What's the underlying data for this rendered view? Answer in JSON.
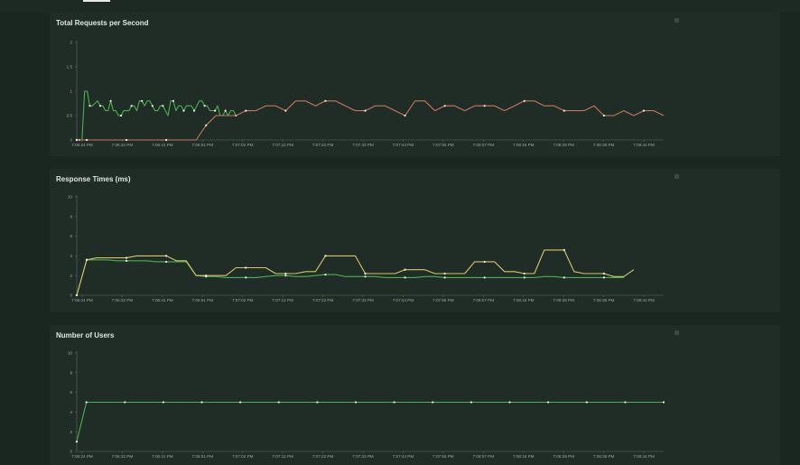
{
  "window": {
    "tab_indicator": ""
  },
  "chart_data": [
    {
      "type": "line",
      "title": "Total Requests per Second",
      "xlabel": "",
      "ylabel": "",
      "ylim": [
        0,
        2
      ],
      "yticks": [
        "0",
        "0.5",
        "1",
        "1.5",
        "2"
      ],
      "xticks": [
        "7:06:24 PM",
        "7:06:32 PM",
        "7:06:41 PM",
        "7:06:51 PM",
        "7:07:02 PM",
        "7:07:12 PM",
        "7:07:22 PM",
        "7:07:33 PM",
        "7:07:44 PM",
        "7:07:55 PM",
        "7:08:07 PM",
        "7:08:18 PM",
        "7:08:28 PM",
        "7:08:36 PM",
        "7:08:44 PM"
      ],
      "grid": false,
      "series": [
        {
          "color": "#4caf50",
          "values": [
            0,
            0,
            0,
            1,
            1,
            0.7,
            0.7,
            0.75,
            0.8,
            0.7,
            0.7,
            0.6,
            0.6,
            0.8,
            0.6,
            0.6,
            0.5,
            0.5,
            0.6,
            0.6,
            0.6,
            0.7,
            0.7,
            0.6,
            0.8,
            0.8,
            0.7,
            0.8,
            0.8,
            0.7,
            0.6,
            0.6,
            0.7,
            0.7,
            0.6,
            0.5,
            0.8,
            0.8,
            0.6,
            0.7,
            0.7,
            0.6,
            0.7,
            0.7,
            0.7,
            0.6,
            0.7,
            0.8,
            0.8,
            0.7,
            0.7,
            0.6,
            0.6,
            0.6,
            0.7,
            0.5,
            0.5,
            0.6,
            0.5,
            0.6,
            0.6,
            0.5
          ],
          "start": 0,
          "end": 16
        },
        {
          "color": "#c8765a",
          "values": [
            0,
            0,
            0,
            0,
            0,
            0,
            0,
            0,
            0,
            0,
            0,
            0,
            0,
            0.3,
            0.5,
            0.5,
            0.5,
            0.6,
            0.6,
            0.7,
            0.7,
            0.6,
            0.8,
            0.8,
            0.7,
            0.8,
            0.8,
            0.7,
            0.6,
            0.6,
            0.7,
            0.7,
            0.6,
            0.5,
            0.8,
            0.8,
            0.6,
            0.7,
            0.7,
            0.6,
            0.7,
            0.7,
            0.7,
            0.6,
            0.7,
            0.8,
            0.8,
            0.7,
            0.7,
            0.6,
            0.6,
            0.6,
            0.7,
            0.5,
            0.5,
            0.6,
            0.5,
            0.6,
            0.6,
            0.5
          ],
          "start": 0,
          "end": 59
        }
      ]
    },
    {
      "type": "line",
      "title": "Response Times (ms)",
      "xlabel": "",
      "ylabel": "",
      "ylim": [
        0,
        10
      ],
      "yticks": [
        "0",
        "2",
        "4",
        "6",
        "8",
        "10"
      ],
      "xticks": [
        "7:06:24 PM",
        "7:06:32 PM",
        "7:06:41 PM",
        "7:06:51 PM",
        "7:07:02 PM",
        "7:07:12 PM",
        "7:07:22 PM",
        "7:07:33 PM",
        "7:07:44 PM",
        "7:07:55 PM",
        "7:08:07 PM",
        "7:08:18 PM",
        "7:08:28 PM",
        "7:08:36 PM",
        "7:08:44 PM"
      ],
      "grid": false,
      "series": [
        {
          "color": "#4caf50",
          "values": [
            0,
            3.6,
            3.6,
            3.6,
            3.5,
            3.5,
            3.5,
            3.5,
            3.4,
            3.4,
            3.4,
            3.4,
            2,
            1.9,
            1.9,
            1.8,
            1.8,
            1.8,
            1.8,
            1.9,
            2,
            2,
            1.9,
            1.9,
            2,
            2.1,
            2.1,
            1.9,
            1.9,
            1.9,
            1.9,
            1.8,
            1.8,
            1.8,
            1.8,
            1.9,
            1.9,
            1.8,
            1.8,
            1.8,
            1.8,
            1.8,
            1.8,
            1.8,
            1.8,
            1.8,
            1.8,
            1.9,
            1.9,
            1.8,
            1.8,
            1.8,
            1.8,
            1.8,
            1.8,
            1.8
          ],
          "start": 0,
          "end": 55
        },
        {
          "color": "#d8c26a",
          "values": [
            0,
            3.6,
            3.8,
            3.8,
            3.8,
            3.8,
            4,
            4,
            4,
            4,
            3.5,
            3.5,
            2,
            2,
            2,
            2,
            2.8,
            2.8,
            2.8,
            2.8,
            2.2,
            2.2,
            2.2,
            2.4,
            2.4,
            4,
            4,
            4,
            4,
            2.2,
            2.2,
            2.2,
            2.2,
            2.6,
            2.6,
            2.6,
            2.2,
            2.2,
            2.2,
            2.2,
            3.4,
            3.4,
            3.4,
            2.4,
            2.4,
            2.2,
            2.2,
            4.6,
            4.6,
            4.6,
            2.4,
            2.2,
            2.2,
            2.2,
            1.9,
            1.9,
            2.6
          ],
          "start": 0,
          "end": 56
        }
      ]
    },
    {
      "type": "line",
      "title": "Number of Users",
      "xlabel": "",
      "ylabel": "",
      "ylim": [
        0,
        10
      ],
      "yticks": [
        "0",
        "2",
        "4",
        "6",
        "8",
        "10"
      ],
      "xticks": [
        "7:06:24 PM",
        "7:06:32 PM",
        "7:06:41 PM",
        "7:06:51 PM",
        "7:07:02 PM",
        "7:07:12 PM",
        "7:07:22 PM",
        "7:07:33 PM",
        "7:07:44 PM",
        "7:07:55 PM",
        "7:08:07 PM",
        "7:08:18 PM",
        "7:08:28 PM",
        "7:08:36 PM",
        "7:08:44 PM"
      ],
      "grid": false,
      "series": [
        {
          "color": "#4caf50",
          "values": [
            1,
            5,
            5,
            5,
            5,
            5,
            5,
            5,
            5,
            5,
            5,
            5,
            5,
            5,
            5,
            5,
            5,
            5,
            5,
            5,
            5,
            5,
            5,
            5,
            5,
            5,
            5,
            5,
            5,
            5,
            5,
            5,
            5,
            5,
            5,
            5,
            5,
            5,
            5,
            5,
            5,
            5,
            5,
            5,
            5,
            5,
            5,
            5,
            5,
            5,
            5,
            5,
            5,
            5,
            5,
            5,
            5,
            5,
            5,
            5,
            5,
            5
          ],
          "start": 0,
          "end": 59
        }
      ]
    }
  ]
}
